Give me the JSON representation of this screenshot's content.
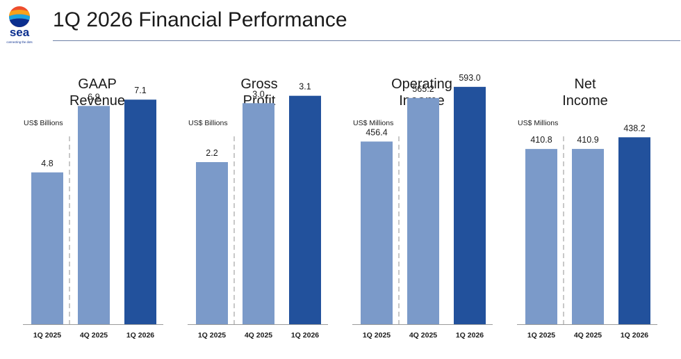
{
  "brand": {
    "logo_text": "sea",
    "tagline": "connecting the dots",
    "colors": {
      "bar_prior": "#7b9ac9",
      "bar_current": "#22519c",
      "divider": "#c8c8c8",
      "rule": "#6c7fa6"
    }
  },
  "slide": {
    "title": "1Q 2026 Financial Performance"
  },
  "chart_data": [
    {
      "type": "bar",
      "title": [
        "GAAP",
        "Revenue"
      ],
      "unit_label": "US$ Billions",
      "categories": [
        "1Q 2025",
        "4Q 2025",
        "1Q 2026"
      ],
      "values": [
        4.8,
        6.9,
        7.1
      ],
      "labels": [
        "4.8",
        "6.9",
        "7.1"
      ],
      "highlight_index": 2,
      "ylim": [
        0,
        10.25
      ]
    },
    {
      "type": "bar",
      "title": [
        "Gross",
        "Profit"
      ],
      "unit_label": "US$ Billions",
      "categories": [
        "1Q 2025",
        "4Q 2025",
        "1Q 2026"
      ],
      "values": [
        2.2,
        3.0,
        3.1
      ],
      "labels": [
        "2.2",
        "3.0",
        "3.1"
      ],
      "highlight_index": 2,
      "ylim": [
        0,
        4.4
      ]
    },
    {
      "type": "bar",
      "title": [
        "Operating",
        "Income"
      ],
      "unit_label": "US$ Millions",
      "categories": [
        "1Q 2025",
        "4Q 2025",
        "1Q 2026"
      ],
      "values": [
        456.4,
        565.2,
        593.0
      ],
      "labels": [
        "456.4",
        "565.2",
        "593.0"
      ],
      "highlight_index": 2,
      "ylim": [
        0,
        810
      ]
    },
    {
      "type": "bar",
      "title": [
        "Net",
        "Income"
      ],
      "unit_label": "US$ Millions",
      "categories": [
        "1Q 2025",
        "4Q 2025",
        "1Q 2026"
      ],
      "values": [
        410.8,
        410.9,
        438.2
      ],
      "labels": [
        "410.8",
        "410.9",
        "438.2"
      ],
      "highlight_index": 2,
      "ylim": [
        0,
        760
      ]
    }
  ]
}
